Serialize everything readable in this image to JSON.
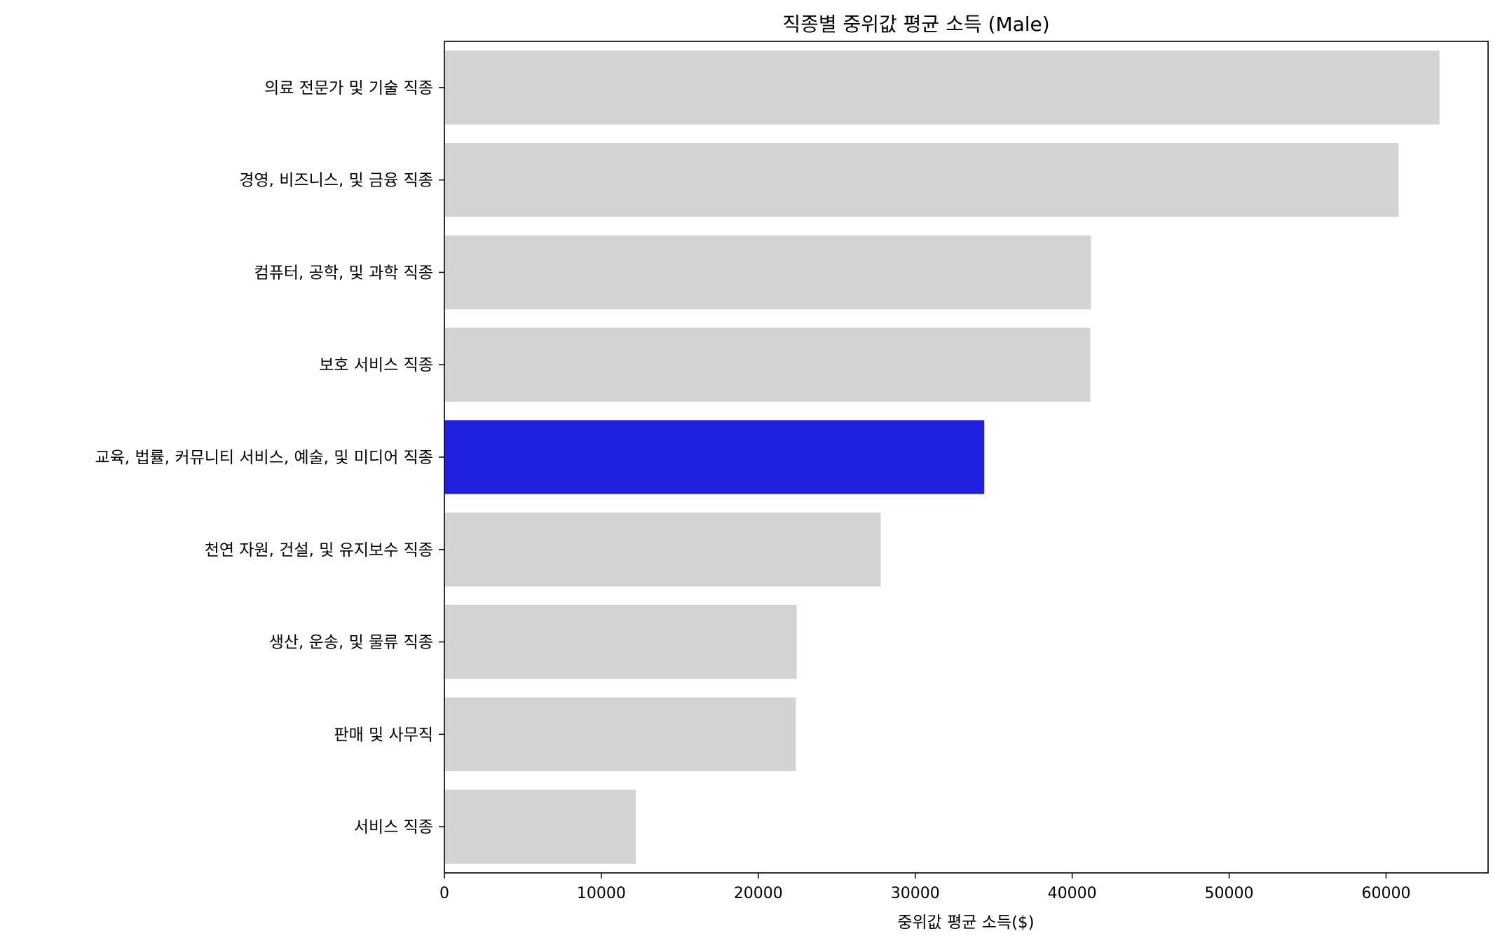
{
  "colors": {
    "default_bar": "#d3d3d3",
    "highlight_bar": "#2020e0",
    "axis": "#000000",
    "background": "#ffffff"
  },
  "chart_data": {
    "type": "bar",
    "orientation": "horizontal",
    "title": "직종별 중위값 평균 소득 (Male)",
    "xlabel": "중위값 평균 소득($)",
    "ylabel": "",
    "xlim": [
      0,
      66500
    ],
    "xticks": [
      0,
      10000,
      20000,
      30000,
      40000,
      50000,
      60000
    ],
    "grid": false,
    "highlight_category": "교육, 법률, 커뮤니티 서비스, 예술, 및 미디어 직종",
    "categories": [
      "의료 전문가 및 기술 직종",
      "경영, 비즈니스, 및 금융 직종",
      "컴퓨터, 공학, 및 과학 직종",
      "보호 서비스 직종",
      "교육, 법률, 커뮤니티 서비스, 예술, 및 미디어 직종",
      "천연 자원, 건설, 및 유지보수 직종",
      "생산, 운송, 및 물류 직종",
      "판매 및 사무직",
      "서비스 직종"
    ],
    "values": [
      63400,
      60800,
      41200,
      41150,
      34400,
      27800,
      22450,
      22400,
      12200
    ]
  }
}
